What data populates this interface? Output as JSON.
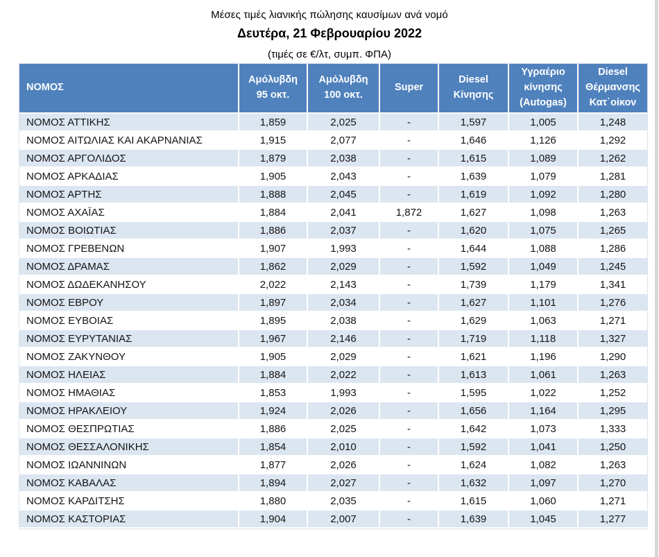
{
  "report": {
    "title": "Μέσες τιμές λιανικής πώλησης καυσίμων  ανά νομό",
    "date": "Δευτέρα, 21 Φεβρουαρίου 2022",
    "units_note": "(τιμές σε €/λτ, συμπ. ΦΠΑ)"
  },
  "colors": {
    "header_bg": "#4f81bd",
    "header_text": "#ffffff",
    "band_row_bg": "#dce6f1",
    "plain_row_bg": "#ffffff",
    "scrollbar_track": "#d7d7d7"
  },
  "table": {
    "columns": [
      "ΝΟΜΟΣ",
      "Αμόλυβδη\n95 οκτ.",
      "Αμόλυβδη\n100 οκτ.",
      "Super",
      "Diesel\nΚίνησης",
      "Υγραέριο\nκίνησης\n(Autogas)",
      "Diesel\nΘέρμανσης\nΚατ΄οίκον"
    ],
    "rows": [
      {
        "nomos": "ΝΟΜΟΣ ΑΤΤΙΚΗΣ",
        "values": [
          "1,859",
          "2,025",
          "-",
          "1,597",
          "1,005",
          "1,248"
        ]
      },
      {
        "nomos": "ΝΟΜΟΣ ΑΙΤΩΛΙΑΣ ΚΑΙ ΑΚΑΡΝΑΝΙΑΣ",
        "values": [
          "1,915",
          "2,077",
          "-",
          "1,646",
          "1,126",
          "1,292"
        ]
      },
      {
        "nomos": "ΝΟΜΟΣ ΑΡΓΟΛΙΔΟΣ",
        "values": [
          "1,879",
          "2,038",
          "-",
          "1,615",
          "1,089",
          "1,262"
        ]
      },
      {
        "nomos": "ΝΟΜΟΣ ΑΡΚΑΔΙΑΣ",
        "values": [
          "1,905",
          "2,043",
          "-",
          "1,639",
          "1,079",
          "1,281"
        ]
      },
      {
        "nomos": "ΝΟΜΟΣ ΑΡΤΗΣ",
        "values": [
          "1,888",
          "2,045",
          "-",
          "1,619",
          "1,092",
          "1,280"
        ]
      },
      {
        "nomos": "ΝΟΜΟΣ ΑΧΑΪΑΣ",
        "values": [
          "1,884",
          "2,041",
          "1,872",
          "1,627",
          "1,098",
          "1,263"
        ]
      },
      {
        "nomos": "ΝΟΜΟΣ ΒΟΙΩΤΙΑΣ",
        "values": [
          "1,886",
          "2,037",
          "-",
          "1,620",
          "1,075",
          "1,265"
        ]
      },
      {
        "nomos": "ΝΟΜΟΣ ΓΡΕΒΕΝΩΝ",
        "values": [
          "1,907",
          "1,993",
          "-",
          "1,644",
          "1,088",
          "1,286"
        ]
      },
      {
        "nomos": "ΝΟΜΟΣ ΔΡΑΜΑΣ",
        "values": [
          "1,862",
          "2,029",
          "-",
          "1,592",
          "1,049",
          "1,245"
        ]
      },
      {
        "nomos": "ΝΟΜΟΣ ΔΩΔΕΚΑΝΗΣΟΥ",
        "values": [
          "2,022",
          "2,143",
          "-",
          "1,739",
          "1,179",
          "1,341"
        ]
      },
      {
        "nomos": "ΝΟΜΟΣ ΕΒΡΟΥ",
        "values": [
          "1,897",
          "2,034",
          "-",
          "1,627",
          "1,101",
          "1,276"
        ]
      },
      {
        "nomos": "ΝΟΜΟΣ ΕΥΒΟΙΑΣ",
        "values": [
          "1,895",
          "2,038",
          "-",
          "1,629",
          "1,063",
          "1,271"
        ]
      },
      {
        "nomos": "ΝΟΜΟΣ ΕΥΡΥΤΑΝΙΑΣ",
        "values": [
          "1,967",
          "2,146",
          "-",
          "1,719",
          "1,118",
          "1,327"
        ]
      },
      {
        "nomos": "ΝΟΜΟΣ ΖΑΚΥΝΘΟΥ",
        "values": [
          "1,905",
          "2,029",
          "-",
          "1,621",
          "1,196",
          "1,290"
        ]
      },
      {
        "nomos": "ΝΟΜΟΣ ΗΛΕΙΑΣ",
        "values": [
          "1,884",
          "2,022",
          "-",
          "1,613",
          "1,061",
          "1,263"
        ]
      },
      {
        "nomos": "ΝΟΜΟΣ ΗΜΑΘΙΑΣ",
        "values": [
          "1,853",
          "1,993",
          "-",
          "1,595",
          "1,022",
          "1,252"
        ]
      },
      {
        "nomos": "ΝΟΜΟΣ ΗΡΑΚΛΕΙΟΥ",
        "values": [
          "1,924",
          "2,026",
          "-",
          "1,656",
          "1,164",
          "1,295"
        ]
      },
      {
        "nomos": "ΝΟΜΟΣ ΘΕΣΠΡΩΤΙΑΣ",
        "values": [
          "1,886",
          "2,025",
          "-",
          "1,642",
          "1,073",
          "1,333"
        ]
      },
      {
        "nomos": "ΝΟΜΟΣ ΘΕΣΣΑΛΟΝΙΚΗΣ",
        "values": [
          "1,854",
          "2,010",
          "-",
          "1,592",
          "1,041",
          "1,250"
        ]
      },
      {
        "nomos": "ΝΟΜΟΣ ΙΩΑΝΝΙΝΩΝ",
        "values": [
          "1,877",
          "2,026",
          "-",
          "1,624",
          "1,082",
          "1,263"
        ]
      },
      {
        "nomos": "ΝΟΜΟΣ ΚΑΒΑΛΑΣ",
        "values": [
          "1,894",
          "2,027",
          "-",
          "1,632",
          "1,097",
          "1,270"
        ]
      },
      {
        "nomos": "ΝΟΜΟΣ ΚΑΡΔΙΤΣΗΣ",
        "values": [
          "1,880",
          "2,035",
          "-",
          "1,615",
          "1,060",
          "1,271"
        ]
      },
      {
        "nomos": "ΝΟΜΟΣ ΚΑΣΤΟΡΙΑΣ",
        "values": [
          "1,904",
          "2,007",
          "-",
          "1,639",
          "1,045",
          "1,277"
        ]
      }
    ]
  }
}
